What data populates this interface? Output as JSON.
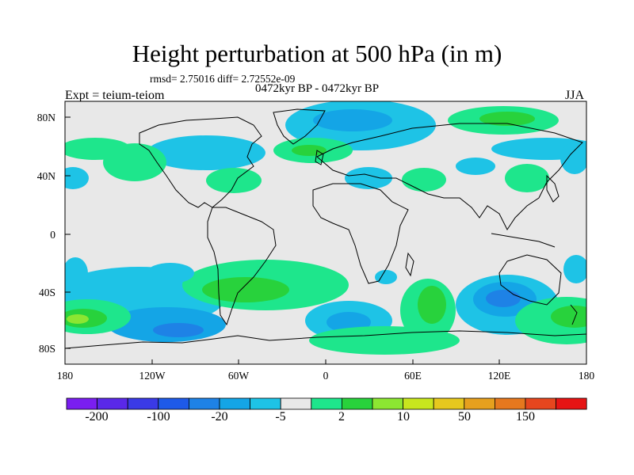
{
  "title": "Height perturbation at 500 hPa (in m)",
  "stats_text": "rmsd= 2.75016 diff= 2.72552e-09",
  "period_text": "0472kyr BP - 0472kyr BP",
  "experiment_text": "Expt = teium-teiom",
  "season": "JJA",
  "axes": {
    "y_ticks": [
      "80N",
      "40N",
      "0",
      "40S",
      "80S"
    ],
    "x_ticks": [
      "180",
      "120W",
      "60W",
      "0",
      "60E",
      "120E",
      "180"
    ]
  },
  "colorbar": {
    "labels": [
      "-200",
      "-100",
      "-20",
      "-5",
      "2",
      "10",
      "50",
      "150"
    ],
    "colors": [
      "#7a1ef0",
      "#5a28e8",
      "#3a3ae6",
      "#1e5ae8",
      "#1e82e6",
      "#14a5e6",
      "#1ec3e6",
      "#e8e8e8",
      "#1ee68c",
      "#28d23c",
      "#8ce632",
      "#c8e61e",
      "#e6c81e",
      "#e6a01e",
      "#e6781e",
      "#e6461e",
      "#e61414"
    ]
  },
  "colors": {
    "background": "#e8e8e8",
    "neg_light": "#1ec3e6",
    "neg_mid": "#14a5e6",
    "neg_strong": "#1e82e6",
    "pos_light": "#1ee68c",
    "pos_mid": "#28d23c",
    "pos_strong": "#8ce632"
  }
}
